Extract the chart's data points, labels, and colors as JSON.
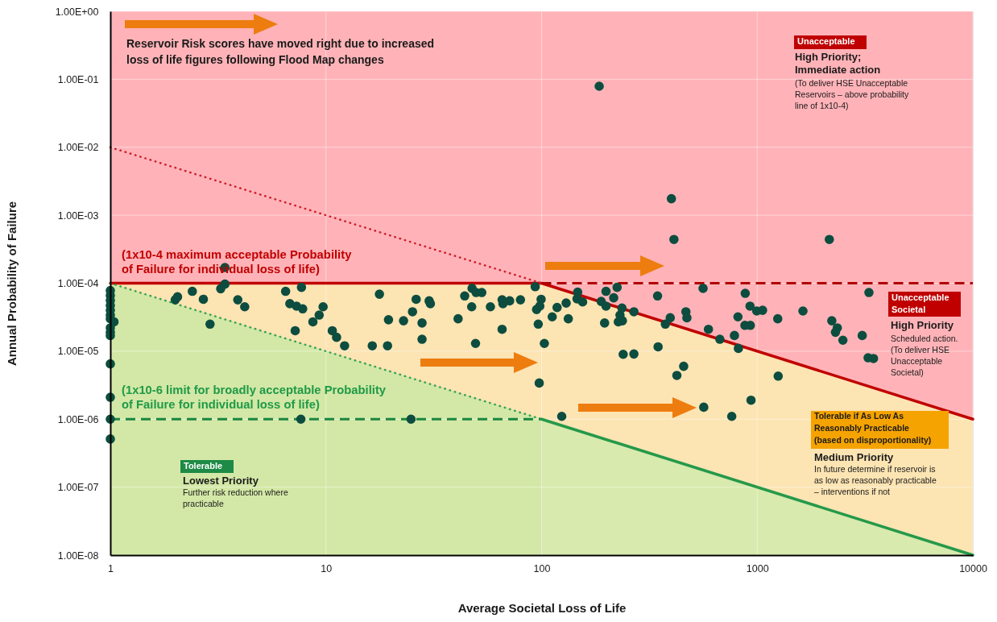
{
  "chart_data": {
    "type": "scatter",
    "xlabel": "Average Societal Loss of Life",
    "ylabel": "Annual Probability of Failure",
    "log": "xy",
    "xlim": [
      1,
      10000
    ],
    "ylim": [
      1e-08,
      1
    ],
    "xticks": [
      1,
      10,
      100,
      1000,
      10000
    ],
    "yticks": [
      {
        "value": 1,
        "label": "1.00E+00"
      },
      {
        "value": 0.1,
        "label": "1.00E-01"
      },
      {
        "value": 0.01,
        "label": "1.00E-02"
      },
      {
        "value": 0.001,
        "label": "1.00E-03"
      },
      {
        "value": 0.0001,
        "label": "1.00E-04"
      },
      {
        "value": 1e-05,
        "label": "1.00E-05"
      },
      {
        "value": 1e-06,
        "label": "1.00E-06"
      },
      {
        "value": 1e-07,
        "label": "1.00E-07"
      },
      {
        "value": 1e-08,
        "label": "1.00E-08"
      }
    ],
    "grid": true,
    "series": [
      {
        "type": "line",
        "color": "#c00000",
        "line_style": "solid",
        "x": [
          1,
          100,
          10000
        ],
        "values": [
          0.0001,
          0.0001,
          1e-06
        ],
        "lower": [
          0.0001,
          1e-06,
          1e-08
        ],
        "upper": [
          0.0001,
          0.0001,
          1e-06
        ]
      },
      {
        "type": "line",
        "color": "#d0202c",
        "line_style": "dotted",
        "x": [
          1,
          100
        ],
        "values": [
          0.01,
          0.0001
        ]
      },
      {
        "type": "line",
        "color": "#b00000",
        "line_style": "dashed",
        "x": [
          100,
          10000
        ],
        "values": [
          0.0001,
          0.0001
        ]
      },
      {
        "type": "line",
        "color": "#35a554",
        "line_style": "dotted",
        "x": [
          1,
          100
        ],
        "values": [
          0.0001,
          1e-06
        ],
        "lower": [
          1e-08,
          1e-08
        ],
        "upper": [
          0.0001,
          1e-06
        ]
      },
      {
        "type": "line",
        "color": "#1b8642",
        "line_style": "dashed",
        "x": [
          1,
          100
        ],
        "values": [
          1e-06,
          1e-06
        ]
      },
      {
        "type": "line",
        "color": "#25994a",
        "line_style": "solid",
        "x": [
          100,
          10000
        ],
        "values": [
          1e-06,
          1e-08
        ],
        "lower": [
          1e-08,
          1e-08
        ],
        "upper": [
          1e-06,
          1e-08
        ]
      },
      {
        "color": "#0d4d3f",
        "marker": "circle",
        "x": [
          1,
          1,
          1,
          1,
          1,
          1,
          1,
          1,
          1,
          1,
          1,
          1,
          1,
          1,
          1.04,
          2.0,
          2.05,
          2.4,
          2.7,
          2.9,
          3.25,
          3.4,
          3.4,
          3.9,
          4.2,
          6.5,
          6.8,
          7.3,
          7.8,
          7.7,
          7.2,
          8.7,
          9.3,
          9.7,
          10.7,
          11.2,
          12.2,
          16.4,
          19.3,
          17.7,
          19.5,
          7.65,
          22.9,
          25.2,
          26.2,
          27.9,
          27.9,
          30.1,
          30.5,
          24.8,
          41,
          44,
          47.6,
          49.7,
          52.8,
          47.4,
          49.4,
          57.9,
          65.6,
          66.2,
          71.1,
          65.6,
          79.8,
          93.4,
          99.5,
          98.1,
          94.8,
          96.5,
          103,
          97.5,
          118,
          112,
          130,
          133,
          124,
          147,
          146,
          155,
          189,
          199,
          216,
          224,
          199,
          196,
          227,
          237,
          231,
          236,
          239,
          400,
          411,
          2160,
          185,
          268,
          268,
          345,
          347,
          375,
          395,
          456,
          424,
          467,
          472,
          561,
          594,
          565,
          671,
          762,
          784,
          818,
          814,
          880,
          926,
          877,
          929,
          995,
          1059,
          936,
          1245,
          1251,
          1630,
          2218,
          2352,
          2306,
          2497,
          3069,
          3297,
          3268,
          3462
        ],
        "values": [
          7.8e-05,
          6.6e-05,
          5.6e-05,
          4.7e-05,
          4e-05,
          3.4e-05,
          3e-05,
          2.2e-05,
          1.9e-05,
          1.7e-05,
          6.5e-06,
          2.1e-06,
          1e-06,
          5.1e-07,
          2.7e-05,
          5.7e-05,
          6.3e-05,
          7.6e-05,
          5.8e-05,
          2.5e-05,
          8.3e-05,
          9.7e-05,
          0.00017,
          5.7e-05,
          4.5e-05,
          7.6e-05,
          5e-05,
          4.6e-05,
          4.2e-05,
          8.7e-05,
          2e-05,
          2.7e-05,
          3.4e-05,
          4.5e-05,
          2e-05,
          1.6e-05,
          1.2e-05,
          1.2e-05,
          1.2e-05,
          6.9e-05,
          2.9e-05,
          1e-06,
          2.8e-05,
          3.8e-05,
          5.8e-05,
          2.6e-05,
          1.5e-05,
          5.5e-05,
          5e-05,
          1e-06,
          3e-05,
          6.5e-05,
          8.4e-05,
          7.3e-05,
          7.3e-05,
          4.5e-05,
          1.3e-05,
          4.5e-05,
          5.7e-05,
          5e-05,
          5.5e-05,
          2.1e-05,
          5.7e-05,
          8.9e-05,
          5.8e-05,
          4.6e-05,
          4.1e-05,
          2.5e-05,
          1.3e-05,
          3.4e-06,
          4.4e-05,
          3.2e-05,
          5.1e-05,
          3e-05,
          1.1e-06,
          7.4e-05,
          5.9e-05,
          5.3e-05,
          5.4e-05,
          7.6e-05,
          6.1e-05,
          8.7e-05,
          4.6e-05,
          2.6e-05,
          2.7e-05,
          2.8e-05,
          3.4e-05,
          4.3e-05,
          9e-06,
          0.00175,
          0.00044,
          0.00044,
          0.079,
          3.8e-05,
          9.1e-06,
          6.5e-05,
          1.16e-05,
          2.5e-05,
          3.1e-05,
          6e-06,
          4.4e-06,
          3.8e-05,
          3.1e-05,
          8.4e-05,
          2.1e-05,
          1.5e-06,
          1.5e-05,
          1.1e-06,
          1.7e-05,
          1.1e-05,
          3.2e-05,
          7.1e-05,
          4.6e-05,
          2.4e-05,
          2.4e-05,
          3.9e-05,
          4e-05,
          1.9e-06,
          3e-05,
          4.3e-06,
          3.9e-05,
          2.8e-05,
          2.2e-05,
          1.9e-05,
          1.45e-05,
          1.7e-05,
          7.3e-05,
          8e-06,
          7.8e-06
        ]
      }
    ],
    "annotations": [
      "Reservoir Risk scores have moved right due to increased\nloss of life figures following Flood Map changes",
      "(1x10-4 maximum acceptable Probability\nof Failure for individual loss of life)",
      "(1x10-6 limit for broadly acceptable Probability\nof Failure for individual loss of life)",
      "Unacceptable",
      "High Priority;\nImmediate action",
      "(To deliver HSE Unacceptable\nReservoirs – above probability\nline of 1x10-4)",
      "Unacceptable\nSocietal",
      "High Priority",
      "Scheduled action.\n(To deliver HSE\nUnacceptable\nSocietal)",
      "Tolerable if As Low As\nReasonably Practicable\n(based on disproportionality)",
      "Medium Priority",
      "In future determine if reservoir is\nas low as reasonably practicable\n– interventions if not",
      "Tolerable",
      "Lowest Priority",
      "Further risk reduction where\npracticable"
    ]
  }
}
